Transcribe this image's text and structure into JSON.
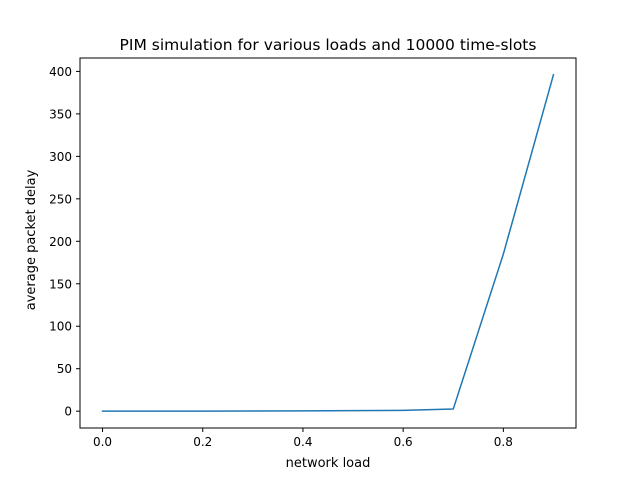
{
  "chart_data": {
    "type": "line",
    "title": "PIM simulation for various loads and 10000 time-slots",
    "xlabel": "network load",
    "ylabel": "average packet delay",
    "xlim": [
      -0.045,
      0.945
    ],
    "ylim": [
      -19.8,
      415.8
    ],
    "xticks": [
      0.0,
      0.2,
      0.4,
      0.6,
      0.8
    ],
    "xtick_labels": [
      "0.0",
      "0.2",
      "0.4",
      "0.6",
      "0.8"
    ],
    "yticks": [
      0,
      50,
      100,
      150,
      200,
      250,
      300,
      350,
      400
    ],
    "ytick_labels": [
      "0",
      "50",
      "100",
      "150",
      "200",
      "250",
      "300",
      "350",
      "400"
    ],
    "grid": false,
    "legend": "none",
    "series": [
      {
        "color": "#1f77b4",
        "x": [
          0.0,
          0.1,
          0.2,
          0.3,
          0.4,
          0.5,
          0.6,
          0.7,
          0.8,
          0.9
        ],
        "y": [
          0.0,
          0.05,
          0.1,
          0.2,
          0.4,
          0.7,
          1.0,
          2.5,
          185,
          396
        ]
      }
    ]
  }
}
